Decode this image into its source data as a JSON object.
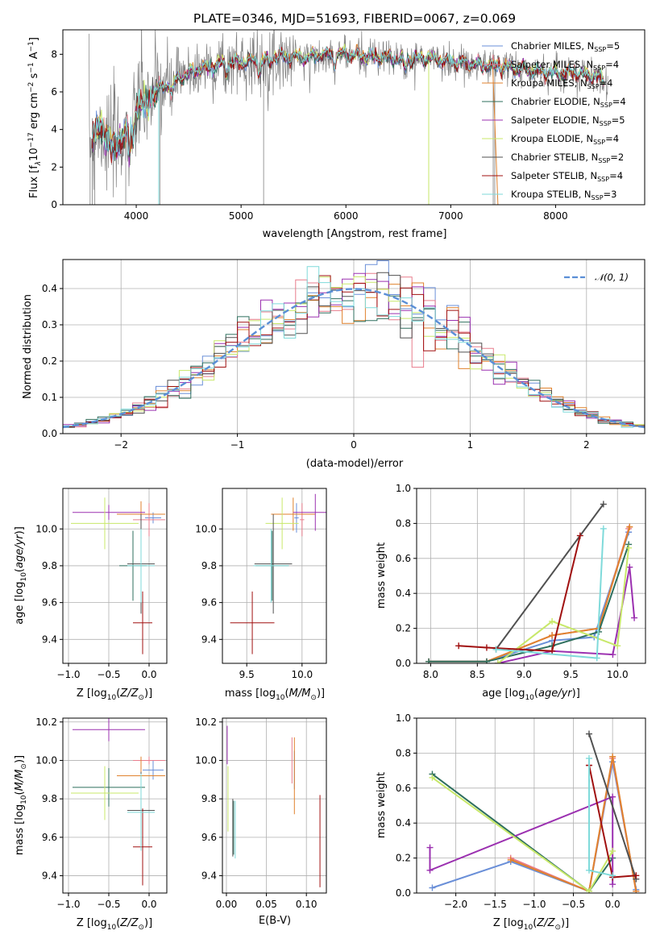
{
  "colors": {
    "Chabrier MILES": "#6a8fd8",
    "Salpeter MILES": "#e87c8c",
    "Kroupa MILES": "#e0822e",
    "Chabrier ELODIE": "#2e6f5e",
    "Salpeter ELODIE": "#9b30b0",
    "Kroupa ELODIE": "#c8e86a",
    "Chabrier STELIB": "#505050",
    "Salpeter STELIB": "#a01010",
    "Kroupa STELIB": "#7fdada",
    "data": "#808080",
    "gaussian": "#5b8fd6"
  },
  "chart_data": [
    {
      "type": "line",
      "title": "PLATE=0346, MJD=51693, FIBERID=0067, z=0.069",
      "xlabel": "wavelength [Angstrom, rest frame]",
      "ylabel": "Flux [f",
      "ylabel_parts": [
        "Flux [f",
        "λ",
        "10",
        "−17",
        " erg cm",
        "−2",
        " s",
        "−1",
        " A",
        "−1",
        "]"
      ],
      "xlim": [
        3300,
        8850
      ],
      "ylim": [
        0,
        9.3
      ],
      "xticks": [
        "4000",
        "5000",
        "6000",
        "7000",
        "8000"
      ],
      "yticks": [
        "0",
        "2",
        "4",
        "6",
        "8"
      ],
      "legend_position": "top-right",
      "legend": [
        {
          "name": "Chabrier MILES",
          "nssp": "5"
        },
        {
          "name": "Salpeter MILES",
          "nssp": "4"
        },
        {
          "name": "Kroupa MILES",
          "nssp": "4"
        },
        {
          "name": "Chabrier ELODIE",
          "nssp": "4"
        },
        {
          "name": "Salpeter ELODIE",
          "nssp": "5"
        },
        {
          "name": "Kroupa ELODIE",
          "nssp": "4"
        },
        {
          "name": "Chabrier STELIB",
          "nssp": "2"
        },
        {
          "name": "Salpeter STELIB",
          "nssp": "4"
        },
        {
          "name": "Kroupa STELIB",
          "nssp": "3"
        }
      ],
      "nssp_prefix": "N",
      "nssp_sub": "SSP",
      "continuum": {
        "x": [
          3550,
          3650,
          3800,
          3900,
          4000,
          4200,
          4400,
          4600,
          4800,
          5000,
          5200,
          5400,
          5600,
          5800,
          6000,
          6200,
          6400,
          6600,
          6800,
          7000,
          7200,
          7400,
          7600,
          7800,
          8000,
          8200,
          8400,
          8500
        ],
        "y": [
          3.6,
          4.0,
          3.0,
          4.0,
          5.2,
          6.1,
          6.7,
          7.2,
          7.5,
          7.6,
          7.7,
          7.9,
          7.8,
          8.0,
          8.0,
          7.9,
          7.8,
          7.7,
          7.8,
          7.6,
          7.5,
          7.4,
          7.3,
          7.1,
          7.0,
          7.0,
          6.8,
          6.4
        ]
      }
    },
    {
      "type": "line",
      "xlabel": "(data-model)/error",
      "ylabel": "Normed distribution",
      "xlim": [
        -2.5,
        2.5
      ],
      "ylim": [
        0,
        0.48
      ],
      "xticks": [
        "−2",
        "−1",
        "0",
        "1",
        "2"
      ],
      "yticks": [
        "0.0",
        "0.1",
        "0.2",
        "0.3",
        "0.4"
      ],
      "legend_position": "top-right",
      "legend": [
        "𝒩(0, 1)"
      ],
      "gaussian": {
        "mean": 0,
        "sigma": 1
      },
      "bin_width": 0.1
    },
    {
      "type": "scatter",
      "xlabel": "Z [log",
      "xlabel_parts": [
        "Z [log",
        "10",
        "(",
        "Z/Z",
        "⊙",
        ")]"
      ],
      "ylabel_parts": [
        "age  [log",
        "10",
        "(",
        "age/yr",
        ")]"
      ],
      "xlim": [
        -1.07,
        0.22
      ],
      "ylim": [
        9.27,
        10.22
      ],
      "xticks": [
        "−1.0",
        "−0.5",
        "0.0"
      ],
      "yticks": [
        "9.4",
        "9.6",
        "9.8",
        "10.0"
      ],
      "points": [
        {
          "model": "Chabrier MILES",
          "x": 0.05,
          "y": 10.06,
          "xerr": 0.1,
          "yerr": 0.03
        },
        {
          "model": "Salpeter MILES",
          "x": 0.0,
          "y": 10.05,
          "xerr": 0.2,
          "yerr": 0.09
        },
        {
          "model": "Kroupa MILES",
          "x": -0.1,
          "y": 10.08,
          "xerr": 0.3,
          "yerr": 0.07
        },
        {
          "model": "Chabrier ELODIE",
          "x": -0.2,
          "y": 9.8,
          "xerr": 0.17,
          "yerr": 0.19
        },
        {
          "model": "Salpeter ELODIE",
          "x": -0.5,
          "y": 10.09,
          "xerr": 0.45,
          "yerr": 0.04
        },
        {
          "model": "Kroupa ELODIE",
          "x": -0.55,
          "y": 10.03,
          "xerr": 0.42,
          "yerr": 0.14
        },
        {
          "model": "Chabrier STELIB",
          "x": -0.1,
          "y": 9.81,
          "xerr": 0.17,
          "yerr": 0.27
        },
        {
          "model": "Salpeter STELIB",
          "x": -0.08,
          "y": 9.49,
          "xerr": 0.12,
          "yerr": 0.17
        },
        {
          "model": "Kroupa STELIB",
          "x": -0.1,
          "y": 9.8,
          "xerr": 0.17,
          "yerr": 0.2
        }
      ]
    },
    {
      "type": "scatter",
      "xlabel_parts": [
        "mass [log",
        "10",
        "(",
        "M/M",
        "⊙",
        ")]"
      ],
      "xlim": [
        9.28,
        10.22
      ],
      "ylim": [
        9.27,
        10.22
      ],
      "xticks": [
        "9.5",
        "10.0"
      ],
      "yticks": [
        "9.4",
        "9.6",
        "9.8",
        "10.0"
      ],
      "points": [
        {
          "model": "Chabrier MILES",
          "x": 9.95,
          "y": 10.06,
          "xerr": 0.02,
          "yerr": 0.08
        },
        {
          "model": "Salpeter MILES",
          "x": 10.0,
          "y": 10.05,
          "xerr": 0.02,
          "yerr": 0.09
        },
        {
          "model": "Kroupa MILES",
          "x": 9.92,
          "y": 10.08,
          "xerr": 0.2,
          "yerr": 0.09
        },
        {
          "model": "Chabrier ELODIE",
          "x": 9.73,
          "y": 9.8,
          "xerr": 0.15,
          "yerr": 0.19
        },
        {
          "model": "Salpeter ELODIE",
          "x": 10.12,
          "y": 10.09,
          "xerr": 0.2,
          "yerr": 0.1
        },
        {
          "model": "Kroupa ELODIE",
          "x": 9.82,
          "y": 10.03,
          "xerr": 0.15,
          "yerr": 0.14
        },
        {
          "model": "Chabrier STELIB",
          "x": 9.74,
          "y": 9.81,
          "xerr": 0.17,
          "yerr": 0.27
        },
        {
          "model": "Salpeter STELIB",
          "x": 9.55,
          "y": 9.49,
          "xerr": 0.2,
          "yerr": 0.17
        },
        {
          "model": "Kroupa STELIB",
          "x": 9.72,
          "y": 9.8,
          "xerr": 0.16,
          "yerr": 0.2
        }
      ]
    },
    {
      "type": "line",
      "xlabel_parts": [
        "age  [log",
        "10",
        "(",
        "age/yr",
        ")]"
      ],
      "ylabel": "mass weight",
      "xlim": [
        7.85,
        10.3
      ],
      "ylim": [
        0,
        1.0
      ],
      "xticks": [
        "8.0",
        "8.5",
        "9.0",
        "9.5",
        "10.0"
      ],
      "yticks": [
        "0.0",
        "0.2",
        "0.4",
        "0.6",
        "0.8",
        "1.0"
      ],
      "series": [
        {
          "model": "Chabrier MILES",
          "x": [
            7.98,
            8.6,
            9.3,
            9.75,
            10.12
          ],
          "y": [
            0.01,
            0.01,
            0.13,
            0.15,
            0.75
          ]
        },
        {
          "model": "Salpeter MILES",
          "x": [
            7.98,
            8.6,
            9.3,
            9.8,
            10.12
          ],
          "y": [
            0.01,
            0.01,
            0.16,
            0.2,
            0.77
          ]
        },
        {
          "model": "Kroupa MILES",
          "x": [
            7.98,
            8.6,
            9.3,
            9.8,
            10.13
          ],
          "y": [
            0.01,
            0.01,
            0.16,
            0.2,
            0.78
          ]
        },
        {
          "model": "Chabrier ELODIE",
          "x": [
            7.98,
            8.6,
            9.3,
            9.8,
            10.12
          ],
          "y": [
            0.01,
            0.01,
            0.1,
            0.18,
            0.68
          ]
        },
        {
          "model": "Salpeter ELODIE",
          "x": [
            8.72,
            9.3,
            9.95,
            10.13,
            10.18
          ],
          "y": [
            0.0,
            0.07,
            0.05,
            0.55,
            0.26
          ]
        },
        {
          "model": "Kroupa ELODIE",
          "x": [
            8.72,
            9.3,
            10.0,
            10.12
          ],
          "y": [
            0.0,
            0.24,
            0.1,
            0.66
          ]
        },
        {
          "model": "Chabrier STELIB",
          "x": [
            8.7,
            9.85
          ],
          "y": [
            0.08,
            0.91
          ]
        },
        {
          "model": "Salpeter STELIB",
          "x": [
            8.3,
            8.6,
            9.3,
            9.6
          ],
          "y": [
            0.1,
            0.09,
            0.07,
            0.73
          ]
        },
        {
          "model": "Kroupa STELIB",
          "x": [
            8.7,
            9.78,
            9.85
          ],
          "y": [
            0.08,
            0.03,
            0.77
          ]
        }
      ]
    },
    {
      "type": "scatter",
      "xlabel_parts": [
        "Z [log",
        "10",
        "(",
        "Z/Z",
        "⊙",
        ")]"
      ],
      "ylabel_parts": [
        "mass [log",
        "10",
        "(",
        "M/M",
        "⊙",
        ")]"
      ],
      "xlim": [
        -1.07,
        0.22
      ],
      "ylim": [
        9.31,
        10.22
      ],
      "xticks": [
        "−1.0",
        "−0.5",
        "0.0"
      ],
      "yticks": [
        "9.4",
        "9.6",
        "9.8",
        "10.0",
        "10.2"
      ],
      "points": [
        {
          "model": "Chabrier MILES",
          "x": 0.05,
          "y": 9.95,
          "xerr": 0.13,
          "yerr": 0.05
        },
        {
          "model": "Salpeter MILES",
          "x": 0.0,
          "y": 10.0,
          "xerr": 0.2,
          "yerr": 0.02
        },
        {
          "model": "Kroupa MILES",
          "x": -0.1,
          "y": 9.92,
          "xerr": 0.3,
          "yerr": 0.1
        },
        {
          "model": "Chabrier ELODIE",
          "x": -0.5,
          "y": 9.86,
          "xerr": 0.45,
          "yerr": 0.1
        },
        {
          "model": "Salpeter ELODIE",
          "x": -0.5,
          "y": 10.16,
          "xerr": 0.45,
          "yerr": 0.06
        },
        {
          "model": "Kroupa ELODIE",
          "x": -0.55,
          "y": 9.83,
          "xerr": 0.42,
          "yerr": 0.14
        },
        {
          "model": "Chabrier STELIB",
          "x": -0.1,
          "y": 9.74,
          "xerr": 0.17,
          "yerr": 0.2
        },
        {
          "model": "Salpeter STELIB",
          "x": -0.08,
          "y": 9.55,
          "xerr": 0.12,
          "yerr": 0.2
        },
        {
          "model": "Kroupa STELIB",
          "x": -0.1,
          "y": 9.73,
          "xerr": 0.17,
          "yerr": 0.2
        }
      ]
    },
    {
      "type": "scatter",
      "xlabel": "E(B-V)",
      "xlim": [
        -0.005,
        0.125
      ],
      "ylim": [
        9.31,
        10.22
      ],
      "xticks": [
        "0.00",
        "0.05",
        "0.10"
      ],
      "yticks": [
        "9.4",
        "9.6",
        "9.8",
        "10.0",
        "10.2"
      ],
      "points": [
        {
          "model": "Chabrier MILES",
          "x": 0.085,
          "y": 9.95,
          "yerr": 0.1
        },
        {
          "model": "Salpeter MILES",
          "x": 0.082,
          "y": 10.0,
          "yerr": 0.12
        },
        {
          "model": "Kroupa MILES",
          "x": 0.085,
          "y": 9.92,
          "yerr": 0.2
        },
        {
          "model": "Chabrier ELODIE",
          "x": 0.009,
          "y": 9.65,
          "yerr": 0.14
        },
        {
          "model": "Salpeter ELODIE",
          "x": 0.001,
          "y": 10.08,
          "yerr": 0.1
        },
        {
          "model": "Kroupa ELODIE",
          "x": 0.002,
          "y": 9.8,
          "yerr": 0.17
        },
        {
          "model": "Chabrier STELIB",
          "x": 0.008,
          "y": 9.65,
          "yerr": 0.15
        },
        {
          "model": "Salpeter STELIB",
          "x": 0.117,
          "y": 9.58,
          "yerr": 0.24
        },
        {
          "model": "Kroupa STELIB",
          "x": 0.011,
          "y": 9.64,
          "yerr": 0.15
        }
      ]
    },
    {
      "type": "line",
      "xlabel_parts": [
        "Z [log",
        "10",
        "(",
        "Z/Z",
        "⊙",
        ")]"
      ],
      "ylabel": "mass weight",
      "xlim": [
        -2.5,
        0.42
      ],
      "ylim": [
        0,
        1.0
      ],
      "xticks": [
        "−2.0",
        "−1.5",
        "−1.0",
        "−0.5",
        "0.0"
      ],
      "yticks": [
        "0.0",
        "0.2",
        "0.4",
        "0.6",
        "0.8",
        "1.0"
      ],
      "series": [
        {
          "model": "Chabrier MILES",
          "x": [
            -2.3,
            -1.3,
            -0.3,
            0.0,
            0.3
          ],
          "y": [
            0.03,
            0.18,
            0.01,
            0.75,
            0.02
          ]
        },
        {
          "model": "Salpeter MILES",
          "x": [
            -1.3,
            -0.3,
            0.0,
            0.3
          ],
          "y": [
            0.2,
            0.01,
            0.77,
            0.01
          ]
        },
        {
          "model": "Kroupa MILES",
          "x": [
            -1.3,
            -0.3,
            0.0,
            0.3
          ],
          "y": [
            0.19,
            0.01,
            0.78,
            0.01
          ]
        },
        {
          "model": "Chabrier ELODIE",
          "x": [
            -2.3,
            -0.3,
            0.0
          ],
          "y": [
            0.68,
            0.01,
            0.2
          ]
        },
        {
          "model": "Salpeter ELODIE",
          "x": [
            -2.33,
            -2.33,
            0.0,
            0.0
          ],
          "y": [
            0.26,
            0.13,
            0.55,
            0.05
          ]
        },
        {
          "model": "Kroupa ELODIE",
          "x": [
            -2.3,
            -0.3,
            0.0
          ],
          "y": [
            0.66,
            0.01,
            0.24
          ]
        },
        {
          "model": "Chabrier STELIB",
          "x": [
            -0.3,
            0.3
          ],
          "y": [
            0.91,
            0.08
          ]
        },
        {
          "model": "Salpeter STELIB",
          "x": [
            -0.3,
            -0.3,
            0.0,
            0.3
          ],
          "y": [
            0.73,
            0.73,
            0.09,
            0.1
          ]
        },
        {
          "model": "Kroupa STELIB",
          "x": [
            -0.3,
            -0.3,
            0.0
          ],
          "y": [
            0.77,
            0.13,
            0.1
          ]
        }
      ]
    }
  ]
}
